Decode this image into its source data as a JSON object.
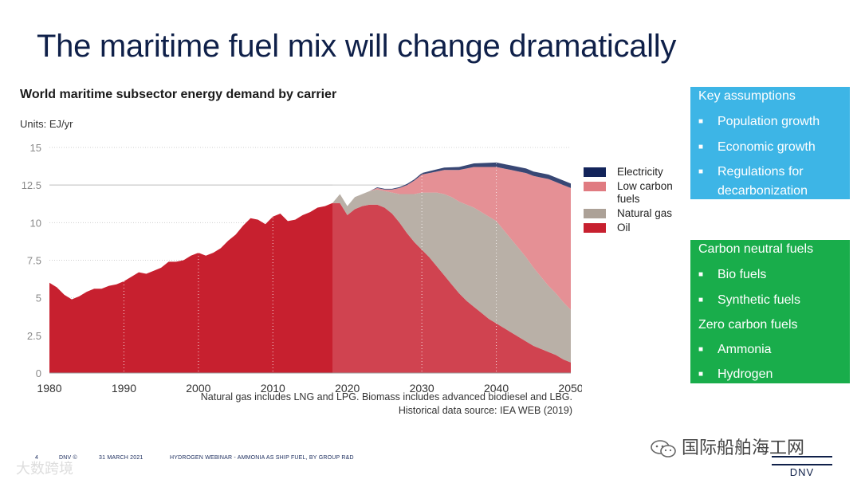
{
  "slide": {
    "title": "The maritime fuel mix will change dramatically"
  },
  "chart_data": {
    "type": "area",
    "stacked": true,
    "title": "World maritime subsector energy demand by carrier",
    "units": "Units: EJ/yr",
    "xlabel": "",
    "ylabel": "",
    "xlim": [
      1980,
      2050
    ],
    "ylim": [
      0,
      15
    ],
    "history_end_year": 2018,
    "xticks": [
      "1980",
      "1990",
      "2000",
      "2010",
      "2020",
      "2030",
      "2040",
      "2050"
    ],
    "yticks": [
      "0",
      "2.5",
      "5",
      "7.5",
      "10",
      "12.5",
      "15"
    ],
    "x": [
      1980,
      1981,
      1982,
      1983,
      1984,
      1985,
      1986,
      1987,
      1988,
      1989,
      1990,
      1991,
      1992,
      1993,
      1994,
      1995,
      1996,
      1997,
      1998,
      1999,
      2000,
      2001,
      2002,
      2003,
      2004,
      2005,
      2006,
      2007,
      2008,
      2009,
      2010,
      2011,
      2012,
      2013,
      2014,
      2015,
      2016,
      2017,
      2018,
      2019,
      2020,
      2021,
      2022,
      2023,
      2024,
      2025,
      2026,
      2027,
      2028,
      2029,
      2030,
      2031,
      2032,
      2033,
      2034,
      2035,
      2036,
      2037,
      2038,
      2039,
      2040,
      2041,
      2042,
      2043,
      2044,
      2045,
      2046,
      2047,
      2048,
      2049,
      2050
    ],
    "series": [
      {
        "name": "Oil",
        "color": "#c7202f",
        "values": [
          6.0,
          5.7,
          5.2,
          4.9,
          5.1,
          5.4,
          5.6,
          5.6,
          5.8,
          5.9,
          6.1,
          6.4,
          6.7,
          6.6,
          6.8,
          7.0,
          7.4,
          7.4,
          7.5,
          7.8,
          8.0,
          7.8,
          8.0,
          8.3,
          8.8,
          9.2,
          9.8,
          10.3,
          10.2,
          9.9,
          10.4,
          10.6,
          10.1,
          10.2,
          10.5,
          10.7,
          11.0,
          11.1,
          11.3,
          11.3,
          10.5,
          10.9,
          11.1,
          11.2,
          11.2,
          11.0,
          10.6,
          10.0,
          9.3,
          8.7,
          8.2,
          7.7,
          7.1,
          6.5,
          5.9,
          5.3,
          4.8,
          4.4,
          4.0,
          3.6,
          3.3,
          3.0,
          2.7,
          2.4,
          2.1,
          1.8,
          1.6,
          1.4,
          1.2,
          0.9,
          0.7
        ]
      },
      {
        "name": "Natural gas",
        "color": "#aca197",
        "values": [
          0,
          0,
          0,
          0,
          0,
          0,
          0,
          0,
          0,
          0,
          0,
          0,
          0,
          0,
          0,
          0,
          0,
          0,
          0,
          0,
          0,
          0,
          0,
          0,
          0,
          0,
          0,
          0,
          0,
          0,
          0,
          0,
          0,
          0,
          0,
          0,
          0,
          0,
          0,
          0.6,
          0.6,
          0.8,
          0.8,
          0.9,
          1.0,
          1.1,
          1.4,
          1.9,
          2.6,
          3.2,
          3.8,
          4.3,
          4.9,
          5.4,
          5.8,
          6.1,
          6.4,
          6.6,
          6.7,
          6.8,
          6.8,
          6.5,
          6.2,
          5.9,
          5.6,
          5.2,
          4.8,
          4.4,
          4.1,
          3.8,
          3.5
        ]
      },
      {
        "name": "Low carbon fuels",
        "color": "#e07b81",
        "values": [
          0,
          0,
          0,
          0,
          0,
          0,
          0,
          0,
          0,
          0,
          0,
          0,
          0,
          0,
          0,
          0,
          0,
          0,
          0,
          0,
          0,
          0,
          0,
          0,
          0,
          0,
          0,
          0,
          0,
          0,
          0,
          0,
          0,
          0,
          0,
          0,
          0,
          0,
          0,
          0,
          0,
          0,
          0,
          0,
          0.1,
          0.1,
          0.2,
          0.4,
          0.6,
          0.9,
          1.2,
          1.3,
          1.4,
          1.6,
          1.8,
          2.1,
          2.4,
          2.7,
          3.0,
          3.3,
          3.6,
          4.1,
          4.6,
          5.1,
          5.6,
          6.1,
          6.6,
          7.1,
          7.4,
          7.8,
          8.1
        ]
      },
      {
        "name": "Electricity",
        "color": "#13245a",
        "values": [
          0,
          0,
          0,
          0,
          0,
          0,
          0,
          0,
          0,
          0,
          0,
          0,
          0,
          0,
          0,
          0,
          0,
          0,
          0,
          0,
          0,
          0,
          0,
          0,
          0,
          0,
          0,
          0,
          0,
          0,
          0,
          0,
          0,
          0,
          0,
          0,
          0,
          0,
          0,
          0,
          0,
          0,
          0,
          0,
          0.05,
          0.05,
          0.05,
          0.06,
          0.07,
          0.08,
          0.1,
          0.12,
          0.14,
          0.16,
          0.18,
          0.2,
          0.22,
          0.24,
          0.26,
          0.28,
          0.3,
          0.3,
          0.3,
          0.3,
          0.3,
          0.3,
          0.3,
          0.3,
          0.3,
          0.3,
          0.3
        ]
      }
    ],
    "legend": [
      "Electricity",
      "Low carbon fuels",
      "Natural gas",
      "Oil"
    ],
    "legend_position": "right"
  },
  "notes": {
    "line1": "Natural gas includes LNG and LPG. Biomass includes advanced biodiesel and LBG.",
    "line2": "Historical data source: IEA WEB (2019)"
  },
  "panels": {
    "key": {
      "title": "Key assumptions",
      "items": [
        "Population growth",
        "Economic growth",
        "Regulations for",
        "decarbonization"
      ]
    },
    "fuels": {
      "title1": "Carbon neutral fuels",
      "items1": [
        "Bio fuels",
        "Synthetic fuels"
      ],
      "title2": "Zero carbon fuels",
      "items2": [
        "Ammonia",
        "Hydrogen"
      ]
    },
    "bullet": "■"
  },
  "footer": {
    "page": "4",
    "brand": "DNV ©",
    "date": "31 MARCH 2021",
    "event": "HYDROGEN WEBINAR - AMMONIA AS SHIP FUEL, BY GROUP R&D",
    "logo": "DNV",
    "wechat": "国际船舶海工网",
    "watermark": "大数跨境"
  }
}
